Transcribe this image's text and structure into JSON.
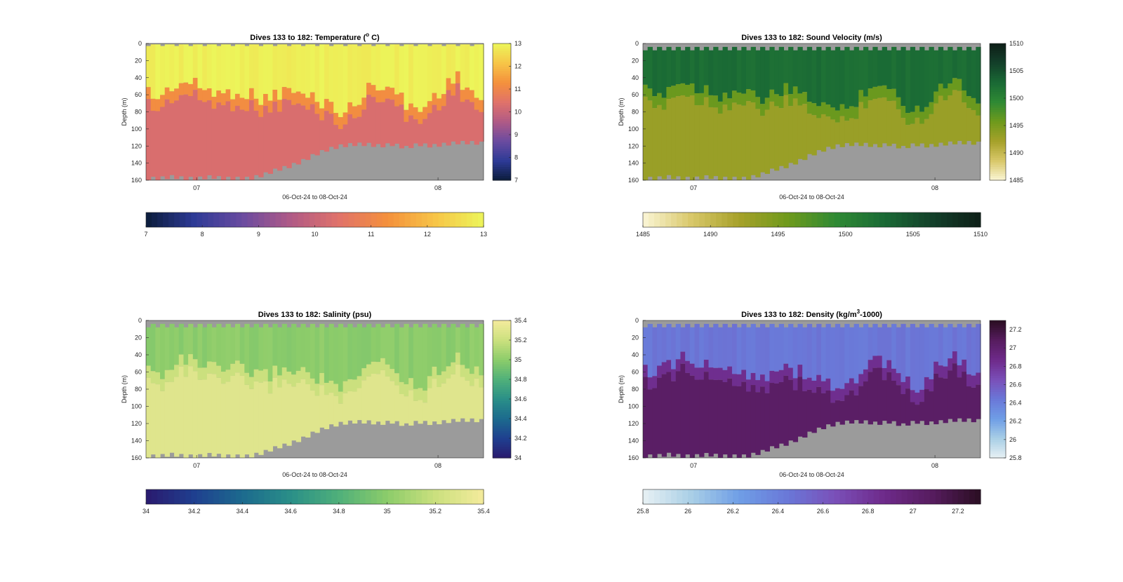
{
  "figure": {
    "background": "#ffffff"
  },
  "chart_data": [
    {
      "type": "heatmap",
      "key": "temperature",
      "title": "Dives 133 to 182: Temperature (° C)",
      "title_parts": {
        "before_sup": "Dives 133 to 182: Temperature (",
        "sup": "o",
        "after_sup": " C)"
      },
      "xlabel": "06-Oct-24 to 08-Oct-24",
      "ylabel": "Depth (m)",
      "ylim": [
        0,
        160
      ],
      "y_reversed": true,
      "yticks": [
        "0",
        "20",
        "40",
        "60",
        "80",
        "100",
        "120",
        "140",
        "160"
      ],
      "xticks": [
        "07",
        "08"
      ],
      "colorbar": {
        "min": 7,
        "max": 13,
        "ticks": [
          "7",
          "8",
          "9",
          "10",
          "11",
          "12",
          "13"
        ],
        "colormap": [
          "#0b1c3a",
          "#2d3a96",
          "#6a4ba0",
          "#b05a86",
          "#e0726a",
          "#f4903c",
          "#f7c547",
          "#ecf55a"
        ]
      },
      "colors": {
        "no_data": "#9b9b9b"
      },
      "profiles": [
        {
          "thermocline_depth": 55,
          "bottom_depth": 160
        },
        {
          "thermocline_depth": 65,
          "bottom_depth": 160
        },
        {
          "thermocline_depth": 50,
          "bottom_depth": 158
        },
        {
          "thermocline_depth": 45,
          "bottom_depth": 160
        },
        {
          "thermocline_depth": 50,
          "bottom_depth": 160
        },
        {
          "thermocline_depth": 55,
          "bottom_depth": 158
        },
        {
          "thermocline_depth": 60,
          "bottom_depth": 160
        },
        {
          "thermocline_depth": 55,
          "bottom_depth": 160
        },
        {
          "thermocline_depth": 60,
          "bottom_depth": 160
        },
        {
          "thermocline_depth": 65,
          "bottom_depth": 156
        },
        {
          "thermocline_depth": 60,
          "bottom_depth": 150
        },
        {
          "thermocline_depth": 55,
          "bottom_depth": 146
        },
        {
          "thermocline_depth": 60,
          "bottom_depth": 140
        },
        {
          "thermocline_depth": 65,
          "bottom_depth": 132
        },
        {
          "thermocline_depth": 70,
          "bottom_depth": 126
        },
        {
          "thermocline_depth": 80,
          "bottom_depth": 122
        },
        {
          "thermocline_depth": 75,
          "bottom_depth": 120
        },
        {
          "thermocline_depth": 55,
          "bottom_depth": 120
        },
        {
          "thermocline_depth": 45,
          "bottom_depth": 122
        },
        {
          "thermocline_depth": 55,
          "bottom_depth": 120
        },
        {
          "thermocline_depth": 70,
          "bottom_depth": 124
        },
        {
          "thermocline_depth": 80,
          "bottom_depth": 120
        },
        {
          "thermocline_depth": 65,
          "bottom_depth": 122
        },
        {
          "thermocline_depth": 50,
          "bottom_depth": 120
        },
        {
          "thermocline_depth": 40,
          "bottom_depth": 118
        },
        {
          "thermocline_depth": 55,
          "bottom_depth": 118
        },
        {
          "thermocline_depth": 70,
          "bottom_depth": 119
        }
      ],
      "water_values": {
        "surface": 12.9,
        "thermocline": 11.2,
        "deep": 10.3
      }
    },
    {
      "type": "heatmap",
      "key": "sound_velocity",
      "title": "Dives 133 to 182: Sound Velocity (m/s)",
      "xlabel": "06-Oct-24 to 08-Oct-24",
      "ylabel": "Depth (m)",
      "ylim": [
        0,
        160
      ],
      "y_reversed": true,
      "yticks": [
        "0",
        "20",
        "40",
        "60",
        "80",
        "100",
        "120",
        "140",
        "160"
      ],
      "xticks": [
        "07",
        "08"
      ],
      "colorbar": {
        "min": 1485,
        "max": 1510,
        "ticks": [
          "1485",
          "1490",
          "1495",
          "1500",
          "1505",
          "1510"
        ],
        "colormap": [
          "#fbf6d6",
          "#d9c86a",
          "#a6a12a",
          "#6f9a1c",
          "#2f8a34",
          "#1a6a35",
          "#13402a",
          "#0e1f18"
        ]
      },
      "colors": {
        "no_data": "#9b9b9b"
      },
      "water_values": {
        "surface": 1502.5,
        "thermocline": 1496.0,
        "deep": 1493.0
      }
    },
    {
      "type": "heatmap",
      "key": "salinity",
      "title": "Dives 133 to 182: Salinity (psu)",
      "xlabel": "06-Oct-24 to 08-Oct-24",
      "ylabel": "Depth (m)",
      "ylim": [
        0,
        160
      ],
      "y_reversed": true,
      "yticks": [
        "0",
        "20",
        "40",
        "60",
        "80",
        "100",
        "120",
        "140",
        "160"
      ],
      "xticks": [
        "07",
        "08"
      ],
      "colorbar": {
        "min": 34.0,
        "max": 35.4,
        "ticks": [
          "34",
          "34.2",
          "34.4",
          "34.6",
          "34.8",
          "35",
          "35.2",
          "35.4"
        ],
        "colorbar_ticks_values": [
          34.0,
          34.2,
          34.4,
          34.6,
          34.8,
          35.0,
          35.2,
          35.4
        ],
        "colormap": [
          "#2a1a6e",
          "#1f3f8f",
          "#1c6a8e",
          "#2a8f88",
          "#4fb07a",
          "#8ccc6a",
          "#cbe07e",
          "#f4eb9c"
        ]
      },
      "colors": {
        "no_data": "#9b9b9b"
      },
      "water_values": {
        "surface": 35.0,
        "thermocline": 35.2,
        "deep": 35.3
      }
    },
    {
      "type": "heatmap",
      "key": "density",
      "title": "Dives 133 to 182: Density (kg/m³-1000)",
      "title_parts": {
        "before_sup": "Dives 133 to 182: Density (kg/m",
        "sup": "3",
        "after_sup": "-1000)"
      },
      "xlabel": "06-Oct-24 to 08-Oct-24",
      "ylabel": "Depth (m)",
      "ylim": [
        0,
        160
      ],
      "y_reversed": true,
      "yticks": [
        "0",
        "20",
        "40",
        "60",
        "80",
        "100",
        "120",
        "140",
        "160"
      ],
      "xticks": [
        "07",
        "08"
      ],
      "colorbar": {
        "min": 25.8,
        "max": 27.3,
        "ticks": [
          "25.8",
          "26",
          "26.2",
          "26.4",
          "26.6",
          "26.8",
          "27",
          "27.2"
        ],
        "colorbar_ticks_values": [
          25.8,
          26.0,
          26.2,
          26.4,
          26.6,
          26.8,
          27.0,
          27.2
        ],
        "colormap": [
          "#e8f1f4",
          "#a9cfe6",
          "#6f9ee6",
          "#6a78d8",
          "#7a4fb8",
          "#6e2a8a",
          "#561c5e",
          "#2a0e22"
        ]
      },
      "colors": {
        "no_data": "#9b9b9b"
      },
      "water_values": {
        "surface": 26.45,
        "thermocline": 26.85,
        "deep": 27.05
      }
    }
  ]
}
